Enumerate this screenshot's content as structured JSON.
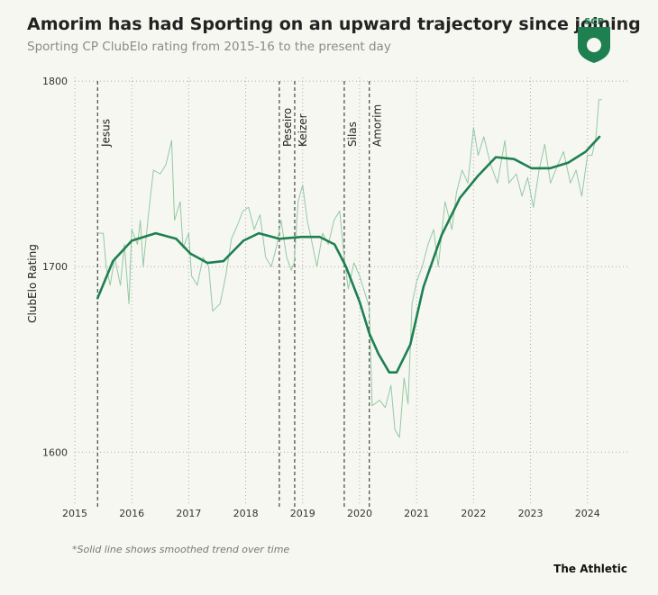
{
  "chart_data": {
    "type": "line",
    "title": "Amorim has had Sporting on an upward trajectory since joining",
    "subtitle": "Sporting CP ClubElo rating from 2015-16 to the present day",
    "y_label": "ClubElo Rating",
    "footnote": "*Solid line shows smoothed trend over time",
    "source": "The Athletic",
    "logo_text": "SCP",
    "xlim": [
      2015,
      2024.7
    ],
    "xticks": [
      2015,
      2016,
      2017,
      2018,
      2019,
      2020,
      2021,
      2022,
      2023,
      2024
    ],
    "ylim": [
      1572,
      1802
    ],
    "yticks": [
      1600,
      1700,
      1800
    ],
    "grid": true,
    "annotations": [
      {
        "label": "Jesus",
        "x": 2015.4
      },
      {
        "label": "Peseiro",
        "x": 2018.59
      },
      {
        "label": "Keizer",
        "x": 2018.86
      },
      {
        "label": "Silas",
        "x": 2019.73
      },
      {
        "label": "Amorim",
        "x": 2020.17
      }
    ],
    "series": [
      {
        "color": "#93c9a2",
        "width": 1,
        "x": [
          2015.4,
          2015.5,
          2015.55,
          2015.62,
          2015.7,
          2015.8,
          2015.87,
          2015.95,
          2016.0,
          2016.1,
          2016.15,
          2016.2,
          2016.3,
          2016.38,
          2016.5,
          2016.6,
          2016.7,
          2016.75,
          2016.85,
          2016.9,
          2017.0,
          2017.05,
          2017.15,
          2017.25,
          2017.35,
          2017.42,
          2017.55,
          2017.65,
          2017.75,
          2017.85,
          2017.95,
          2018.05,
          2018.15,
          2018.25,
          2018.35,
          2018.45,
          2018.55,
          2018.62,
          2018.72,
          2018.8,
          2018.85,
          2018.92,
          2019.0,
          2019.08,
          2019.15,
          2019.25,
          2019.35,
          2019.45,
          2019.55,
          2019.65,
          2019.72,
          2019.8,
          2019.9,
          2020.0,
          2020.1,
          2020.17,
          2020.22,
          2020.35,
          2020.45,
          2020.55,
          2020.62,
          2020.7,
          2020.78,
          2020.85,
          2020.92,
          2021.0,
          2021.1,
          2021.2,
          2021.3,
          2021.38,
          2021.5,
          2021.62,
          2021.7,
          2021.8,
          2021.9,
          2022.0,
          2022.08,
          2022.18,
          2022.3,
          2022.42,
          2022.55,
          2022.62,
          2022.75,
          2022.85,
          2022.95,
          2023.05,
          2023.15,
          2023.25,
          2023.35,
          2023.48,
          2023.58,
          2023.7,
          2023.8,
          2023.9,
          2024.0,
          2024.08,
          2024.15,
          2024.2,
          2024.25
        ],
        "values": [
          1718,
          1718,
          1700,
          1690,
          1705,
          1690,
          1712,
          1680,
          1720,
          1712,
          1725,
          1700,
          1730,
          1752,
          1750,
          1755,
          1768,
          1725,
          1735,
          1710,
          1718,
          1695,
          1690,
          1705,
          1700,
          1676,
          1680,
          1695,
          1715,
          1722,
          1730,
          1732,
          1720,
          1728,
          1705,
          1700,
          1712,
          1725,
          1705,
          1698,
          1702,
          1735,
          1744,
          1725,
          1715,
          1700,
          1718,
          1712,
          1725,
          1730,
          1708,
          1688,
          1702,
          1695,
          1685,
          1678,
          1625,
          1628,
          1624,
          1636,
          1612,
          1608,
          1640,
          1626,
          1680,
          1692,
          1700,
          1712,
          1720,
          1700,
          1735,
          1720,
          1740,
          1752,
          1745,
          1775,
          1760,
          1770,
          1755,
          1745,
          1768,
          1745,
          1750,
          1738,
          1748,
          1732,
          1752,
          1766,
          1745,
          1755,
          1762,
          1745,
          1752,
          1738,
          1760,
          1760,
          1770,
          1790,
          1790
        ]
      },
      {
        "color": "#1e8050",
        "width": 2.6,
        "x": [
          2015.4,
          2015.67,
          2016.0,
          2016.42,
          2016.78,
          2017.03,
          2017.33,
          2017.61,
          2017.96,
          2018.23,
          2018.59,
          2018.98,
          2019.3,
          2019.56,
          2019.76,
          2020.0,
          2020.17,
          2020.33,
          2020.52,
          2020.65,
          2020.89,
          2021.12,
          2021.44,
          2021.76,
          2022.08,
          2022.39,
          2022.71,
          2023.02,
          2023.34,
          2023.66,
          2023.97,
          2024.21
        ],
        "values": [
          1683,
          1703,
          1714,
          1718,
          1715,
          1707,
          1702,
          1703,
          1714,
          1718,
          1715,
          1716,
          1716,
          1712,
          1700,
          1681,
          1664,
          1653,
          1643,
          1643,
          1658,
          1689,
          1717,
          1737,
          1749,
          1759,
          1758,
          1753,
          1753,
          1756,
          1762,
          1770
        ]
      }
    ]
  }
}
